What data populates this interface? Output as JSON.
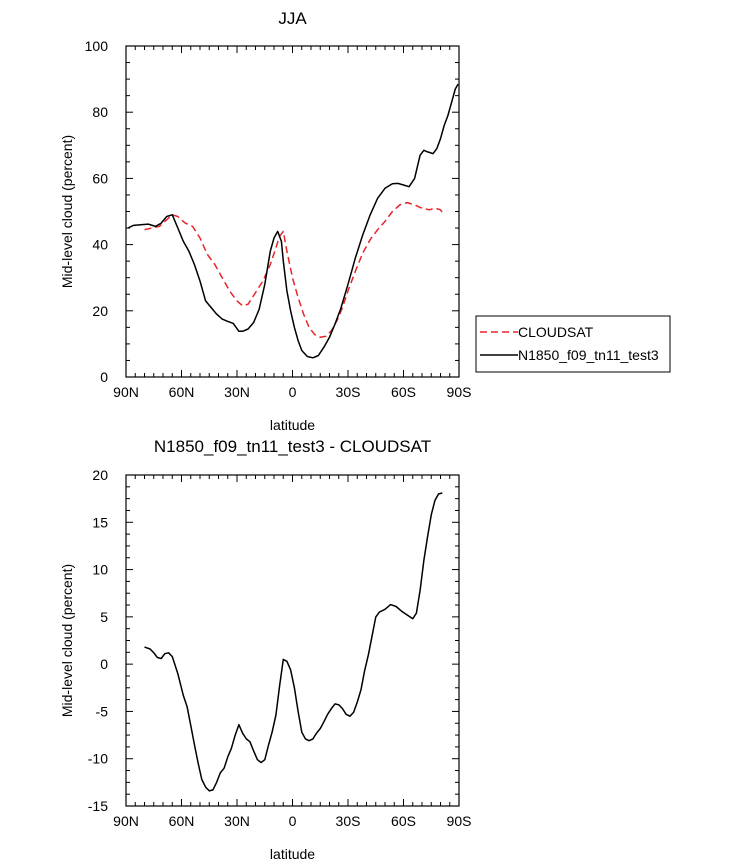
{
  "chart_data": [
    {
      "type": "line",
      "title": "JJA",
      "xlabel": "latitude",
      "ylabel": "Mid-level cloud (percent)",
      "xlim": [
        90,
        -90
      ],
      "ylim": [
        0,
        100
      ],
      "x_ticks": [
        90,
        60,
        30,
        0,
        -30,
        -60,
        -90
      ],
      "x_tick_labels": [
        "90N",
        "60N",
        "30N",
        "0",
        "30S",
        "60S",
        "90S"
      ],
      "y_ticks": [
        0,
        20,
        40,
        60,
        80,
        100
      ],
      "y_tick_labels": [
        "0",
        "20",
        "40",
        "60",
        "80",
        "100"
      ],
      "legend_position": "outside-right",
      "series": [
        {
          "name": "CLOUDSAT",
          "color": "#e8242a",
          "dash": "dashed",
          "x": [
            80,
            76,
            72,
            68,
            65,
            62,
            58,
            54,
            50,
            46,
            42,
            38,
            34,
            30,
            27,
            24,
            20,
            16,
            12,
            9,
            7,
            5,
            3,
            0,
            -3,
            -6,
            -9,
            -12,
            -15,
            -18,
            -21,
            -24,
            -27,
            -30,
            -34,
            -38,
            -42,
            -46,
            -50,
            -54,
            -58,
            -62,
            -66,
            -70,
            -74,
            -77,
            -80,
            -82
          ],
          "y": [
            44.5,
            45,
            45.5,
            47.5,
            49,
            48.5,
            46.5,
            45.5,
            42,
            37,
            34,
            30,
            26,
            23,
            21.5,
            22,
            25.5,
            29,
            34,
            39,
            42.5,
            44,
            38,
            30,
            24,
            19,
            15,
            12.8,
            12,
            12.3,
            14,
            17,
            21,
            26,
            32,
            37.5,
            41.5,
            44.5,
            47,
            50,
            52,
            52.7,
            52,
            51,
            50.5,
            51,
            50.5,
            48.8
          ]
        },
        {
          "name": "N1850_f09_tn11_test3",
          "color": "#000000",
          "dash": "solid",
          "x": [
            89,
            86,
            82,
            78,
            74,
            71,
            68,
            65,
            62,
            59,
            56,
            53,
            50,
            47,
            44,
            41,
            38,
            35,
            32,
            29,
            27,
            24,
            21,
            18,
            15,
            12,
            10,
            8,
            6,
            5,
            3,
            1,
            -1,
            -3,
            -5,
            -8,
            -11,
            -14,
            -17,
            -20,
            -23,
            -26,
            -30,
            -34,
            -38,
            -42,
            -46,
            -50,
            -54,
            -57,
            -60,
            -63,
            -66,
            -69,
            -71,
            -73,
            -76,
            -78,
            -80,
            -82,
            -84,
            -86,
            -88,
            -89.5
          ],
          "y": [
            45,
            45.8,
            46,
            46.2,
            45.5,
            46.5,
            48.5,
            49,
            45,
            41,
            38,
            34,
            29,
            23,
            21,
            19,
            17.5,
            16.8,
            16.2,
            13.8,
            13.8,
            14.5,
            16.5,
            20.5,
            28,
            38,
            42,
            44,
            41,
            35,
            26,
            20,
            15,
            11,
            8,
            6.2,
            5.8,
            6.5,
            9,
            12,
            16,
            20.5,
            28,
            36,
            43,
            49,
            54,
            57,
            58.4,
            58.5,
            58,
            57.5,
            60,
            67,
            68.5,
            68,
            67.5,
            69,
            72,
            76,
            79,
            83,
            87,
            88.5
          ]
        }
      ]
    },
    {
      "type": "line",
      "title": "N1850_f09_tn11_test3 - CLOUDSAT",
      "xlabel": "latitude",
      "ylabel": "Mid-level cloud (percent)",
      "xlim": [
        90,
        -90
      ],
      "ylim": [
        -15,
        20
      ],
      "x_ticks": [
        90,
        60,
        30,
        0,
        -30,
        -60,
        -90
      ],
      "x_tick_labels": [
        "90N",
        "60N",
        "30N",
        "0",
        "30S",
        "60S",
        "90S"
      ],
      "y_ticks": [
        -15,
        -10,
        -5,
        0,
        5,
        10,
        15,
        20
      ],
      "y_tick_labels": [
        "-15",
        "-10",
        "-5",
        "0",
        "5",
        "10",
        "15",
        "20"
      ],
      "series": [
        {
          "color": "#000000",
          "dash": "solid",
          "x": [
            80,
            77,
            75,
            73,
            71,
            69,
            67,
            65,
            62,
            59,
            57,
            55,
            53,
            51,
            49,
            47,
            45,
            43,
            41,
            39,
            37,
            35,
            33,
            31,
            29,
            27,
            25,
            23,
            21,
            19,
            17,
            15,
            13,
            11,
            9,
            7,
            5,
            3,
            1,
            -1,
            -3,
            -5,
            -7,
            -9,
            -11,
            -13,
            -15,
            -17,
            -19,
            -21,
            -23,
            -25,
            -27,
            -29,
            -31,
            -33,
            -35,
            -37,
            -39,
            -41,
            -43,
            -45,
            -47,
            -50,
            -53,
            -56,
            -59,
            -62,
            -65,
            -67,
            -69,
            -71,
            -73,
            -75,
            -77,
            -79,
            -81
          ],
          "y": [
            1.8,
            1.6,
            1.2,
            0.7,
            0.6,
            1.1,
            1.2,
            0.8,
            -1,
            -3.3,
            -4.5,
            -6.5,
            -8.5,
            -10.5,
            -12.2,
            -13,
            -13.4,
            -13.3,
            -12.5,
            -11.5,
            -11,
            -9.8,
            -8.9,
            -7.5,
            -6.4,
            -7.3,
            -7.9,
            -8.2,
            -9.2,
            -10.1,
            -10.4,
            -10.1,
            -8.6,
            -7.2,
            -5.4,
            -2.3,
            0.5,
            0.3,
            -0.6,
            -2.5,
            -5,
            -7.2,
            -7.9,
            -8.1,
            -7.9,
            -7.3,
            -6.8,
            -6.1,
            -5.3,
            -4.7,
            -4.2,
            -4.3,
            -4.7,
            -5.3,
            -5.5,
            -5.1,
            -4,
            -2.7,
            -0.7,
            1,
            3,
            5,
            5.5,
            5.8,
            6.3,
            6.1,
            5.6,
            5.2,
            4.8,
            5.4,
            7.8,
            11,
            13.5,
            15.8,
            17.3,
            18,
            18.1
          ]
        }
      ]
    }
  ]
}
